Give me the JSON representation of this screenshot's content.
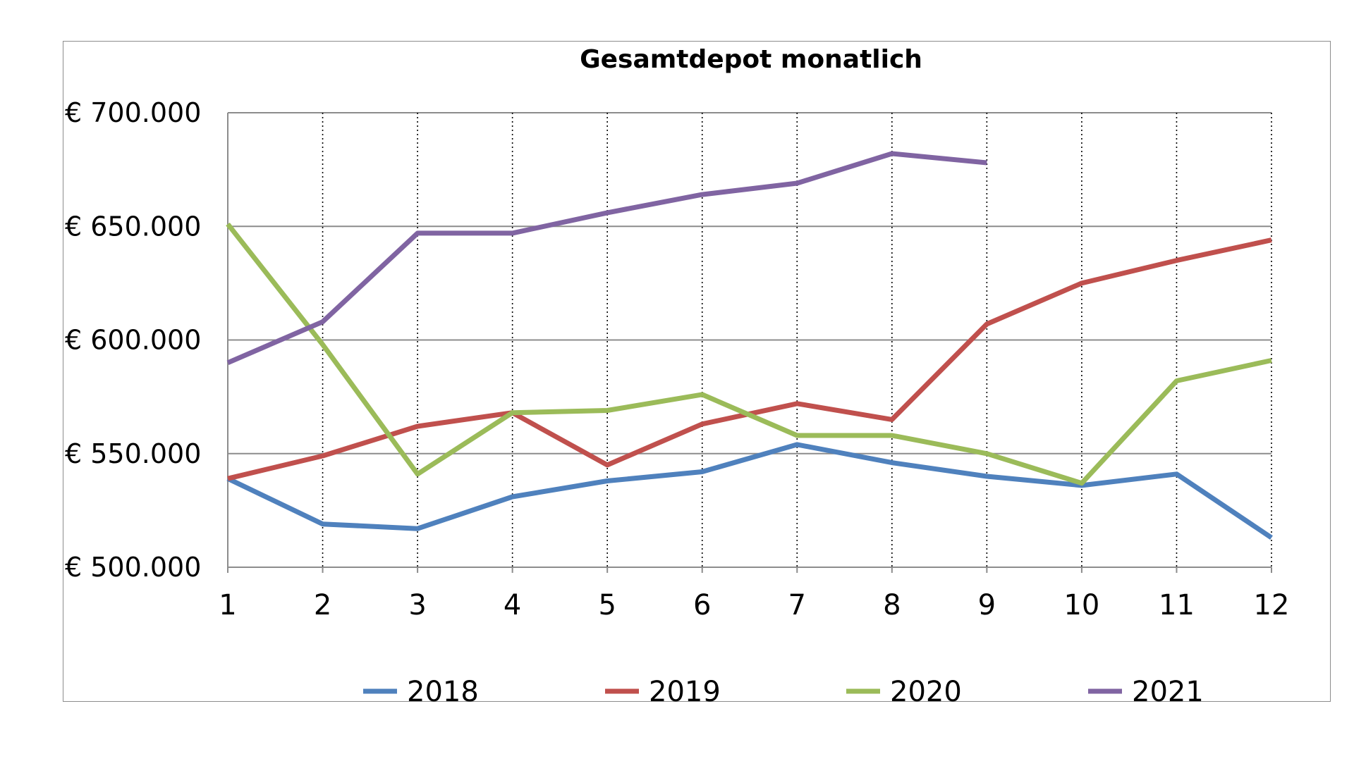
{
  "chart_data": {
    "type": "line",
    "title": "Gesamtdepot monatlich",
    "xlabel": "",
    "ylabel": "",
    "x": [
      1,
      2,
      3,
      4,
      5,
      6,
      7,
      8,
      9,
      10,
      11,
      12
    ],
    "x_tick_labels": [
      "1",
      "2",
      "3",
      "4",
      "5",
      "6",
      "7",
      "8",
      "9",
      "10",
      "11",
      "12"
    ],
    "ylim": [
      500000,
      700000
    ],
    "y_ticks": [
      500000,
      550000,
      600000,
      650000,
      700000
    ],
    "y_tick_labels": [
      "€ 500.000",
      "€ 550.000",
      "€ 600.000",
      "€ 650.000",
      "€ 700.000"
    ],
    "horizontal_grid": true,
    "vertical_grid": "dotted",
    "legend_position": "bottom",
    "series": [
      {
        "name": "2018",
        "color": "#4f81bd",
        "values": [
          539000,
          519000,
          517000,
          531000,
          538000,
          542000,
          554000,
          546000,
          540000,
          536000,
          541000,
          513000
        ]
      },
      {
        "name": "2019",
        "color": "#c0504d",
        "values": [
          539000,
          549000,
          562000,
          568000,
          545000,
          563000,
          572000,
          565000,
          607000,
          625000,
          635000,
          644000
        ]
      },
      {
        "name": "2020",
        "color": "#9bbb59",
        "values": [
          651000,
          598000,
          541000,
          568000,
          569000,
          576000,
          558000,
          558000,
          550000,
          537000,
          582000,
          591000
        ]
      },
      {
        "name": "2021",
        "color": "#8064a2",
        "values": [
          590000,
          608000,
          647000,
          647000,
          656000,
          664000,
          669000,
          682000,
          678000,
          null,
          null,
          null
        ]
      }
    ]
  }
}
